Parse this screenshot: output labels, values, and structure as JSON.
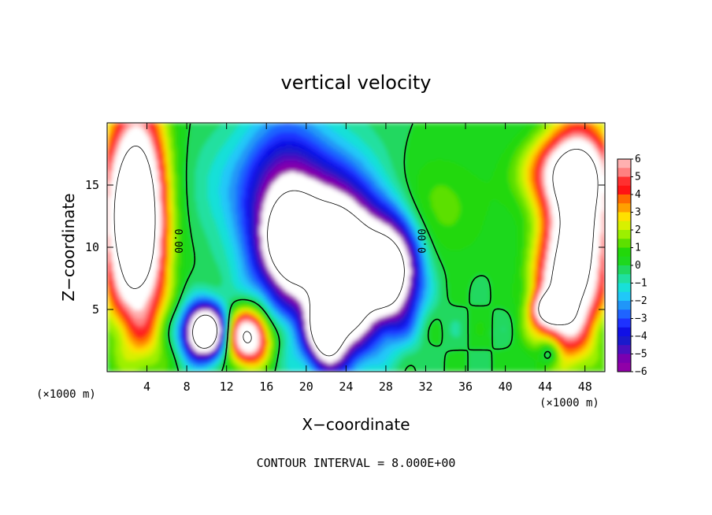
{
  "chart_data": {
    "type": "heatmap",
    "title": "vertical velocity",
    "xlabel": "X−coordinate",
    "ylabel": "Z−coordinate",
    "x_unit_left": "(×1000 m)",
    "x_unit_right": "(×1000 m)",
    "xlim": [
      0,
      50
    ],
    "ylim": [
      0,
      20
    ],
    "x_ticks": [
      4,
      8,
      12,
      16,
      20,
      24,
      28,
      32,
      36,
      40,
      44,
      48
    ],
    "x_tick_labels": [
      "4",
      "8",
      "12",
      "16",
      "20",
      "24",
      "28",
      "32",
      "36",
      "40",
      "44",
      "48"
    ],
    "y_ticks": [
      5,
      10,
      15
    ],
    "y_tick_labels": [
      "5",
      "10",
      "15"
    ],
    "footnote": "CONTOUR INTERVAL = 8.000E+00",
    "contour_labels": [
      {
        "text": "0.00",
        "x": 6.8,
        "y": 10.5,
        "rotation": 90
      },
      {
        "text": "0.00",
        "x": 32.0,
        "y": 10.5,
        "rotation": -90
      }
    ],
    "colorbar": {
      "min": -6,
      "max": 6,
      "labels": [
        "6",
        "5",
        "4",
        "3",
        "2",
        "1",
        "0",
        "−1",
        "−2",
        "−3",
        "−4",
        "−5",
        "−6"
      ],
      "colors": [
        "#ffb0b0",
        "#ff8080",
        "#ff3030",
        "#ff1414",
        "#ff6a00",
        "#ffa000",
        "#ffe000",
        "#d8f000",
        "#9cf000",
        "#5ce000",
        "#22d80a",
        "#1ed81e",
        "#20d860",
        "#20e0a0",
        "#18e0d8",
        "#20c8f8",
        "#2096f8",
        "#1f64ff",
        "#1e32ff",
        "#1010e6",
        "#1a1acc",
        "#4a10c0",
        "#7a00b0",
        "#9000a8"
      ]
    },
    "features": [
      {
        "x": 2.2,
        "y": 12.5,
        "value": 9.0,
        "sx": 2.0,
        "sy": 5.5
      },
      {
        "x": 3.8,
        "y": 12.0,
        "value": 5.0,
        "sx": 1.8,
        "sy": 7.0
      },
      {
        "x": 9.8,
        "y": 3.2,
        "value": -12.0,
        "sx": 1.5,
        "sy": 1.5
      },
      {
        "x": 14.2,
        "y": 2.8,
        "value": 9.0,
        "sx": 1.6,
        "sy": 1.6
      },
      {
        "x": 17.8,
        "y": 12.5,
        "value": -5.5,
        "sx": 3.0,
        "sy": 5.5
      },
      {
        "x": 23.0,
        "y": 10.5,
        "value": -5.5,
        "sx": 4.0,
        "sy": 4.5
      },
      {
        "x": 18.5,
        "y": 10.5,
        "value": -6.5,
        "sx": 1.6,
        "sy": 2.0
      },
      {
        "x": 23.6,
        "y": 7.0,
        "value": -9.0,
        "sx": 2.2,
        "sy": 4.0
      },
      {
        "x": 28.5,
        "y": 8.0,
        "value": -9.0,
        "sx": 2.0,
        "sy": 3.0
      },
      {
        "x": 22.0,
        "y": 3.0,
        "value": -7.0,
        "sx": 1.2,
        "sy": 1.8
      },
      {
        "x": 32.0,
        "y": 13.0,
        "value": 1.5,
        "sx": 4.0,
        "sy": 3.0
      },
      {
        "x": 47.5,
        "y": 12.0,
        "value": 9.0,
        "sx": 2.2,
        "sy": 5.5
      },
      {
        "x": 45.5,
        "y": 6.0,
        "value": 6.0,
        "sx": 2.0,
        "sy": 3.5
      },
      {
        "x": 44.5,
        "y": 5.0,
        "value": 8.0,
        "sx": 1.0,
        "sy": 0.8
      },
      {
        "x": 46.0,
        "y": 16.0,
        "value": 5.0,
        "sx": 3.0,
        "sy": 2.0
      },
      {
        "x": 44.5,
        "y": 1.5,
        "value": -3.0,
        "sx": 0.8,
        "sy": 0.8
      },
      {
        "x": 12.0,
        "y": 15.0,
        "value": -1.0,
        "sx": 3.0,
        "sy": 3.0
      }
    ]
  }
}
